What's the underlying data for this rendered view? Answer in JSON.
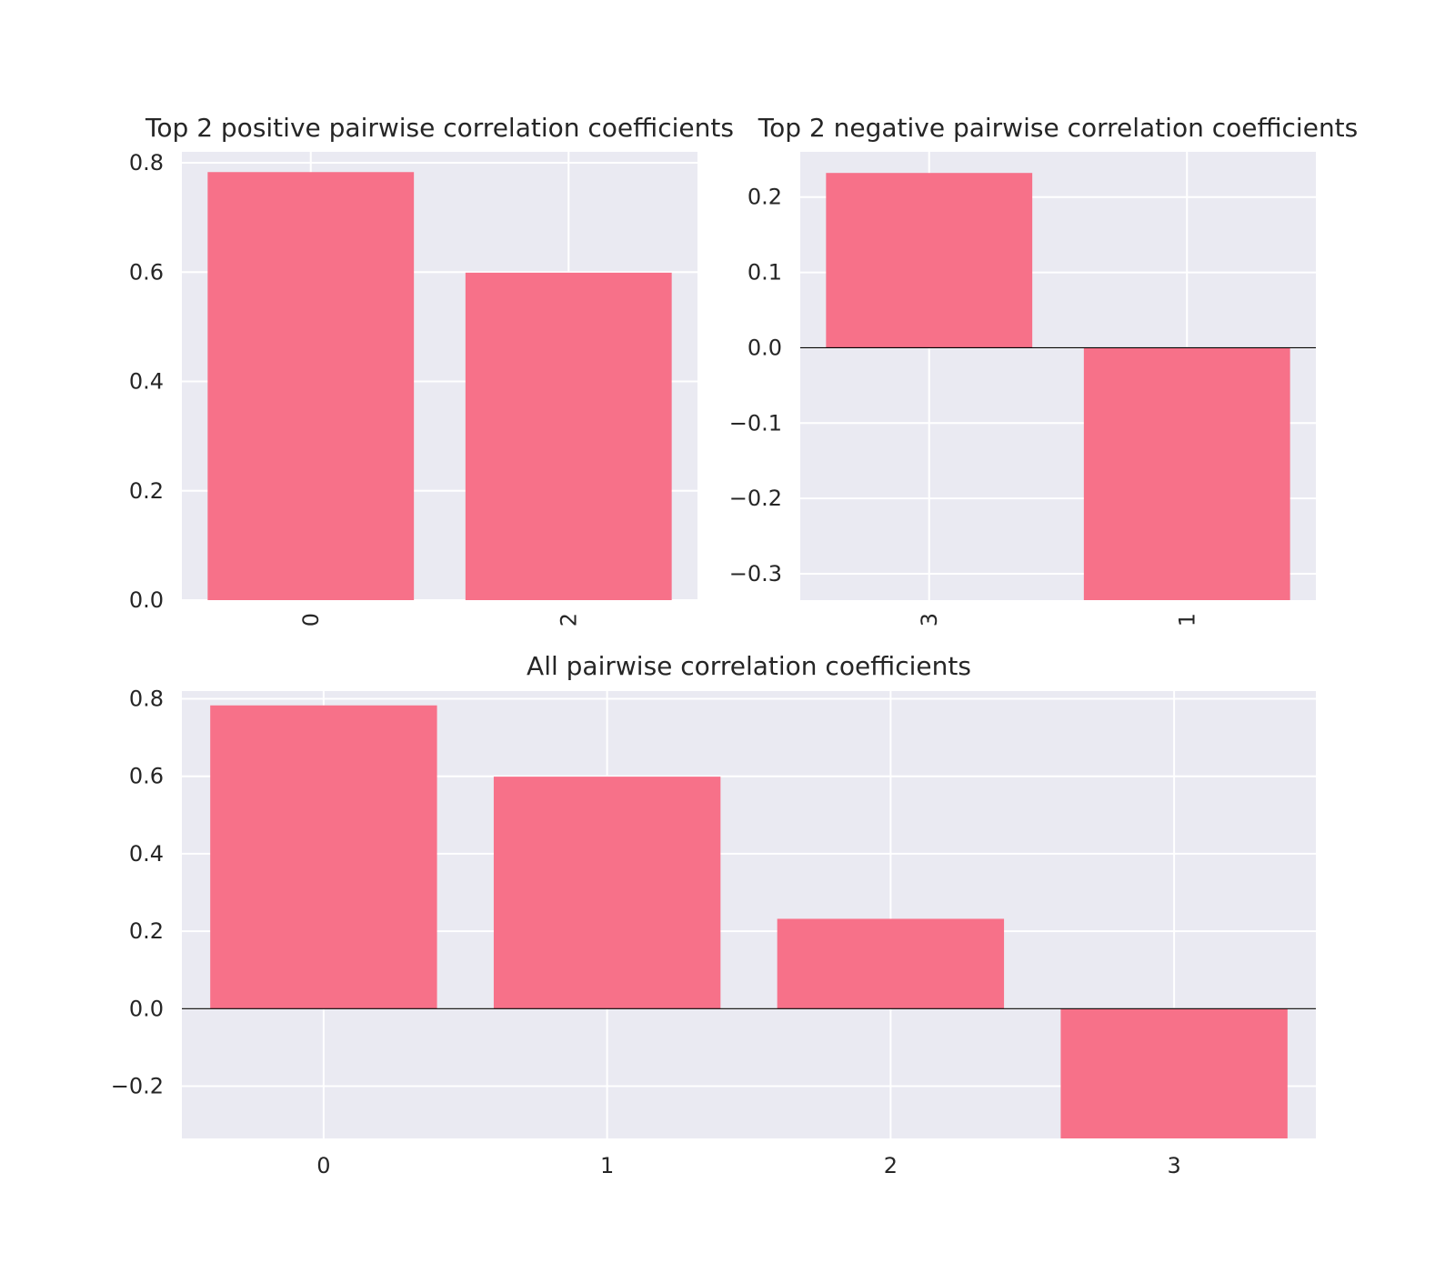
{
  "figure": {
    "bar_color": "#f77189",
    "axes_background": "#eaeaf2",
    "grid_color": "#ffffff",
    "zero_line_color": "#000000",
    "text_color": "#262626"
  },
  "chart_data": [
    {
      "id": "top-positive",
      "type": "bar",
      "title": "Top 2 positive pairwise correlation coefficients",
      "categories": [
        "0",
        "2"
      ],
      "values": [
        0.783,
        0.599
      ],
      "xlabel": "",
      "ylabel": "",
      "ylim": [
        0.0,
        0.82
      ],
      "yticks": [
        0.0,
        0.2,
        0.4,
        0.6,
        0.8
      ],
      "ytick_labels": [
        "0.0",
        "0.2",
        "0.4",
        "0.6",
        "0.8"
      ],
      "xtick_rotation": 90,
      "grid": true,
      "zero_line": false
    },
    {
      "id": "top-negative",
      "type": "bar",
      "title": "Top 2 negative pairwise correlation coefficients",
      "categories": [
        "3",
        "1"
      ],
      "values": [
        0.232,
        -0.335
      ],
      "xlabel": "",
      "ylabel": "",
      "ylim": [
        -0.335,
        0.26
      ],
      "yticks": [
        -0.3,
        -0.2,
        -0.1,
        0.0,
        0.1,
        0.2
      ],
      "ytick_labels": [
        "−0.3",
        "−0.2",
        "−0.1",
        "0.0",
        "0.1",
        "0.2"
      ],
      "xtick_rotation": 90,
      "grid": true,
      "zero_line": true
    },
    {
      "id": "all-pairwise",
      "type": "bar",
      "title": "All pairwise correlation coefficients",
      "categories": [
        "0",
        "1",
        "2",
        "3"
      ],
      "values": [
        0.783,
        0.599,
        0.232,
        -0.335
      ],
      "xlabel": "",
      "ylabel": "",
      "ylim": [
        -0.335,
        0.82
      ],
      "yticks": [
        -0.2,
        0.0,
        0.2,
        0.4,
        0.6,
        0.8
      ],
      "ytick_labels": [
        "−0.2",
        "0.0",
        "0.2",
        "0.4",
        "0.6",
        "0.8"
      ],
      "xtick_rotation": 0,
      "grid": true,
      "zero_line": true
    }
  ]
}
